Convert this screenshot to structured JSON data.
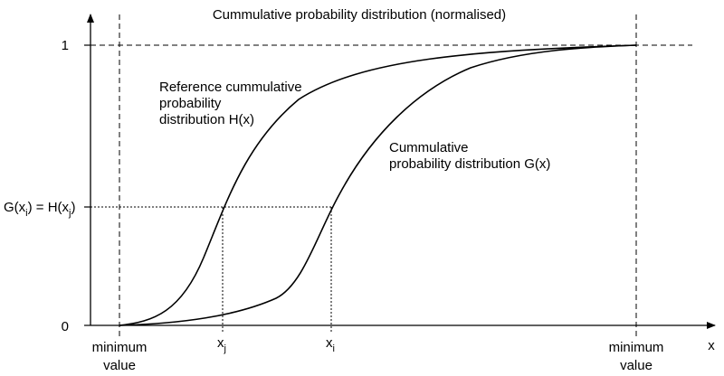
{
  "title": "Cummulative probability distribution (normalised)",
  "y_axis": {
    "tick_one": "1",
    "tick_zero": "0",
    "level_label": {
      "left_main": "G(x",
      "left_sub": "i",
      "right_main": ") = H(x",
      "right_sub": "j",
      "end": ")"
    }
  },
  "x_axis": {
    "label": "x",
    "left_bound": {
      "line1": "minimum",
      "line2": "value"
    },
    "right_bound": {
      "line1": "minimum",
      "line2": "value"
    },
    "xj_label": {
      "main": "x",
      "sub": "j"
    },
    "xi_label": {
      "main": "x",
      "sub": "i"
    }
  },
  "curves": {
    "reference": {
      "line1": "Reference cummulative",
      "line2": "probability",
      "line3": "distribution H(x)"
    },
    "cumulative": {
      "line1": "Cummulative",
      "line2": "probability distribution G(x)"
    }
  },
  "colors": {
    "stroke": "#000000",
    "background": "#ffffff"
  }
}
